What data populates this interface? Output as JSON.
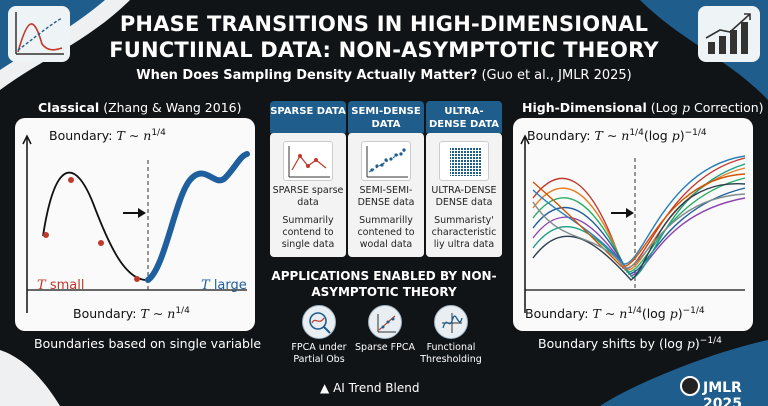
{
  "title_line1": "PHASE TRANSITIONS IN HIGH-DIMENSIONAL",
  "title_line2": "FUNCTIINAL DATA: NON-ASYMPTOTIC THEORY",
  "subtitle_bold": "When Does Sampling Density Actually Matter?",
  "subtitle_ref": "(Guo et al., JMLR 2025)",
  "left_panel": {
    "head_bold": "Classical",
    "head_ref": "(Zhang & Wang 2016)",
    "boundary_label": "Boundary:",
    "small_label": "small",
    "large_label": "large",
    "bottom_boundary_label": "Boundary:",
    "footer": "Boundaries based on single variable"
  },
  "right_panel": {
    "head_bold": "High-Dimensional",
    "head_ref_open": "(Log",
    "head_ref_close": "Correction)",
    "boundary_label": "Boundary:",
    "bottom_boundary_label": "Boundary:",
    "footer_prefix": "Boundary shifts by"
  },
  "columns": [
    {
      "header": "SPARSE DATA",
      "line1": "SPARSE sparse data",
      "line2": "Summarily contend to single data"
    },
    {
      "header": "SEMI-DENSE DATA",
      "line1": "SEMI-SEMI-DENSE data",
      "line2": "Summarilly contened to wodal data"
    },
    {
      "header": "ULTRA-DENSE DATA",
      "line1": "ULTRA-DENSE DENSE data",
      "line2": "Summaristy' characteristic liy ultra data"
    }
  ],
  "applications": {
    "title": "APPLICATIONS ENABLED BY NON-ASYMPTOTIC THEORY",
    "items": [
      {
        "label": "FPCA under Partial Obs",
        "icon": "magnifier-curve-icon"
      },
      {
        "label": "Sparse FPCA",
        "icon": "scatter-trend-icon"
      },
      {
        "label": "Functional Thresholding",
        "icon": "threshold-wave-icon"
      }
    ]
  },
  "brand": "AI Trend Blend",
  "journal_badge": "JMLR 2025",
  "colors": {
    "accent_blue": "#1e5d8c",
    "curve_red": "#c0392b",
    "curve_blue": "#1f5f9e",
    "background": "#111417"
  }
}
